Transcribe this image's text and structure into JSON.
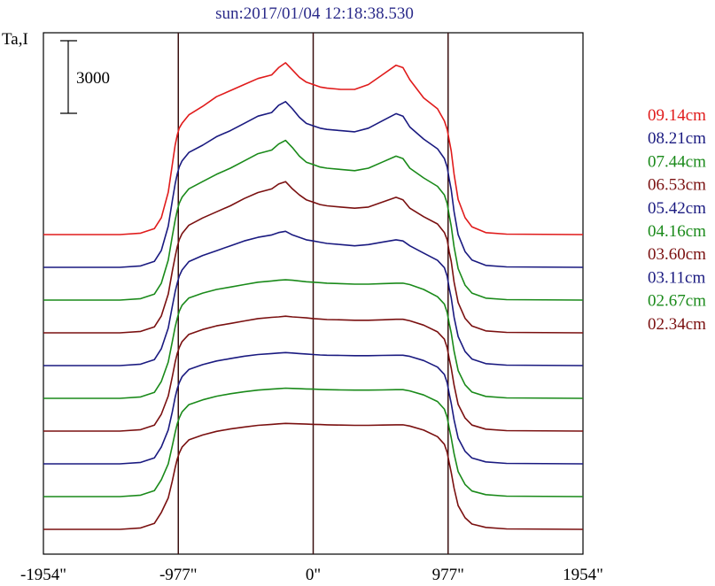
{
  "chart_data": {
    "type": "line",
    "title": "sun:2017/01/04 12:18:38.530",
    "ylabel": "Ta,I",
    "scale_bar_label": "3000",
    "scale_bar_value": 3000,
    "xlabels": [
      "-1954\"",
      "-977\"",
      "0\"",
      "977\"",
      "1954\""
    ],
    "xticks": [
      -1954,
      -977,
      0,
      977,
      1954
    ],
    "xlim": [
      -1954,
      1954
    ],
    "vlines": [
      -977,
      0,
      977
    ],
    "profile_x": [
      -1954,
      -1400,
      -1250,
      -1150,
      -1100,
      -1050,
      -1020,
      -1000,
      -985,
      -970,
      -950,
      -900,
      -800,
      -700,
      -600,
      -500,
      -400,
      -300,
      -250,
      -200,
      -150,
      -100,
      -50,
      0,
      50,
      100,
      200,
      300,
      400,
      500,
      600,
      650,
      700,
      800,
      900,
      950,
      970,
      985,
      1000,
      1020,
      1050,
      1100,
      1150,
      1250,
      1400,
      1954
    ],
    "series": [
      {
        "name": "09.14cm",
        "color": "#e01b1b",
        "offset": 0,
        "values": [
          0,
          0,
          60,
          250,
          700,
          1750,
          2900,
          3700,
          4100,
          4400,
          4600,
          4950,
          5300,
          5700,
          5950,
          6200,
          6450,
          6600,
          6900,
          7100,
          6800,
          6500,
          6300,
          6200,
          6100,
          6050,
          6000,
          6000,
          6200,
          6600,
          7000,
          6900,
          6400,
          5650,
          5200,
          4700,
          4350,
          3900,
          3450,
          2500,
          1450,
          700,
          320,
          80,
          20,
          0
        ]
      },
      {
        "name": "08.21cm",
        "color": "#1a1a80",
        "offset": 1,
        "values": [
          0,
          0,
          60,
          250,
          700,
          1700,
          2750,
          3450,
          3850,
          4150,
          4400,
          4750,
          5050,
          5400,
          5650,
          5950,
          6250,
          6400,
          6700,
          6850,
          6550,
          6200,
          5950,
          5850,
          5750,
          5700,
          5650,
          5600,
          5750,
          6050,
          6350,
          6250,
          5800,
          5300,
          4900,
          4500,
          4150,
          3650,
          3200,
          2300,
          1350,
          650,
          300,
          80,
          20,
          0
        ]
      },
      {
        "name": "07.44cm",
        "color": "#1a8a1a",
        "offset": 2,
        "values": [
          0,
          0,
          60,
          250,
          700,
          1650,
          2650,
          3300,
          3700,
          4000,
          4250,
          4600,
          4900,
          5200,
          5450,
          5750,
          6050,
          6200,
          6450,
          6600,
          6300,
          5950,
          5700,
          5600,
          5500,
          5450,
          5400,
          5350,
          5450,
          5700,
          5950,
          5850,
          5450,
          5050,
          4700,
          4350,
          4000,
          3500,
          3050,
          2200,
          1300,
          620,
          290,
          80,
          20,
          0
        ]
      },
      {
        "name": "06.53cm",
        "color": "#7a1010",
        "offset": 3,
        "values": [
          0,
          0,
          60,
          250,
          700,
          1600,
          2550,
          3150,
          3550,
          3850,
          4100,
          4450,
          4750,
          5000,
          5250,
          5550,
          5800,
          5950,
          6150,
          6250,
          5950,
          5700,
          5500,
          5400,
          5300,
          5250,
          5200,
          5150,
          5200,
          5400,
          5600,
          5500,
          5150,
          4800,
          4500,
          4150,
          3850,
          3350,
          2950,
          2100,
          1250,
          600,
          280,
          80,
          20,
          0
        ]
      },
      {
        "name": "05.42cm",
        "color": "#1a1a80",
        "offset": 4,
        "values": [
          0,
          0,
          60,
          250,
          700,
          1550,
          2450,
          3050,
          3400,
          3700,
          3950,
          4300,
          4550,
          4750,
          4950,
          5150,
          5300,
          5400,
          5500,
          5550,
          5400,
          5300,
          5200,
          5150,
          5100,
          5050,
          5000,
          4950,
          5000,
          5100,
          5200,
          5150,
          4950,
          4650,
          4350,
          4050,
          3700,
          3200,
          2800,
          2000,
          1200,
          580,
          270,
          80,
          20,
          0
        ]
      },
      {
        "name": "04.16cm",
        "color": "#1a8a1a",
        "offset": 5,
        "values": [
          0,
          0,
          60,
          250,
          700,
          1500,
          2350,
          2950,
          3300,
          3600,
          3850,
          4150,
          4350,
          4500,
          4600,
          4700,
          4800,
          4850,
          4880,
          4900,
          4880,
          4850,
          4820,
          4800,
          4780,
          4760,
          4740,
          4720,
          4720,
          4740,
          4760,
          4760,
          4700,
          4500,
          4200,
          3900,
          3550,
          3100,
          2700,
          1950,
          1150,
          560,
          260,
          80,
          20,
          0
        ]
      },
      {
        "name": "03.60cm",
        "color": "#7a1010",
        "offset": 6,
        "values": [
          0,
          0,
          60,
          250,
          700,
          1450,
          2250,
          2850,
          3200,
          3450,
          3700,
          4000,
          4200,
          4350,
          4450,
          4550,
          4650,
          4700,
          4720,
          4750,
          4720,
          4700,
          4680,
          4650,
          4630,
          4610,
          4600,
          4580,
          4580,
          4600,
          4620,
          4620,
          4560,
          4380,
          4100,
          3800,
          3450,
          3000,
          2600,
          1900,
          1100,
          540,
          250,
          80,
          20,
          0
        ]
      },
      {
        "name": "03.11cm",
        "color": "#1a1a80",
        "offset": 7,
        "values": [
          0,
          0,
          60,
          250,
          700,
          1400,
          2150,
          2750,
          3100,
          3350,
          3600,
          3900,
          4100,
          4250,
          4350,
          4450,
          4520,
          4560,
          4580,
          4600,
          4580,
          4560,
          4540,
          4520,
          4500,
          4490,
          4480,
          4470,
          4470,
          4480,
          4490,
          4490,
          4440,
          4270,
          4000,
          3700,
          3350,
          2900,
          2500,
          1820,
          1060,
          520,
          240,
          80,
          20,
          0
        ]
      },
      {
        "name": "02.67cm",
        "color": "#1a8a1a",
        "offset": 8,
        "values": [
          0,
          0,
          60,
          250,
          700,
          1350,
          2100,
          2650,
          3000,
          3250,
          3500,
          3800,
          4000,
          4150,
          4250,
          4330,
          4400,
          4440,
          4460,
          4480,
          4470,
          4460,
          4450,
          4440,
          4430,
          4420,
          4410,
          4400,
          4400,
          4410,
          4420,
          4420,
          4370,
          4200,
          3930,
          3620,
          3280,
          2830,
          2430,
          1770,
          1030,
          500,
          230,
          80,
          20,
          0
        ]
      },
      {
        "name": "02.34cm",
        "color": "#7a1010",
        "offset": 9,
        "values": [
          0,
          0,
          60,
          250,
          700,
          1300,
          2000,
          2550,
          2900,
          3150,
          3400,
          3700,
          3900,
          4050,
          4150,
          4230,
          4300,
          4340,
          4360,
          4380,
          4370,
          4360,
          4350,
          4340,
          4330,
          4320,
          4310,
          4300,
          4300,
          4310,
          4320,
          4320,
          4270,
          4100,
          3830,
          3520,
          3180,
          2750,
          2350,
          1700,
          980,
          480,
          220,
          80,
          20,
          0
        ]
      }
    ]
  }
}
